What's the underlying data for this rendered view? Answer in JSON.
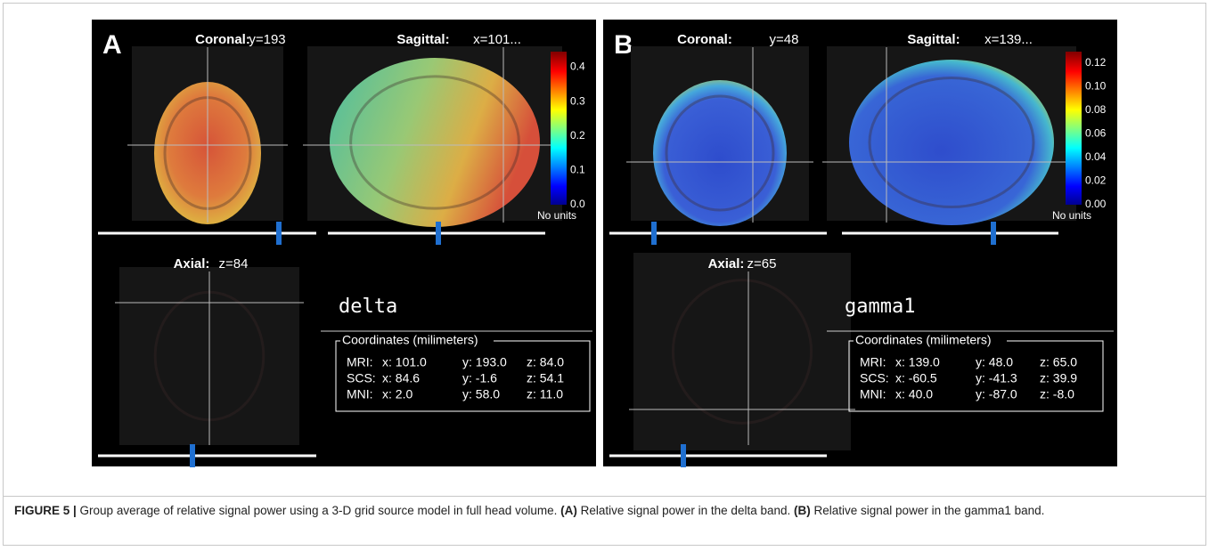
{
  "figure": {
    "panels": [
      {
        "letter": "A",
        "coronal": {
          "title": "Coronal:",
          "coord": "y=193"
        },
        "sagittal": {
          "title": "Sagittal:",
          "coord": "x=101..."
        },
        "axial": {
          "title": "Axial:",
          "coord": "z=84"
        },
        "colorbar": {
          "ticks": [
            "0.4",
            "0.3",
            "0.2",
            "0.1",
            "0.0"
          ],
          "units": "No units"
        },
        "band": "delta",
        "coordinates": {
          "title": "Coordinates (milimeters)",
          "rows": [
            [
              "MRI:",
              "x: 101.0",
              "y: 193.0",
              "z: 84.0"
            ],
            [
              "SCS:",
              "x: 84.6",
              "y: -1.6",
              "z: 54.1"
            ],
            [
              "MNI:",
              "x: 2.0",
              "y: 58.0",
              "z: 11.0"
            ]
          ]
        }
      },
      {
        "letter": "B",
        "coronal": {
          "title": "Coronal:",
          "coord": "y=48"
        },
        "sagittal": {
          "title": "Sagittal:",
          "coord": "x=139..."
        },
        "axial": {
          "title": "Axial:",
          "coord": "z=65"
        },
        "colorbar": {
          "ticks": [
            "0.12",
            "0.10",
            "0.08",
            "0.06",
            "0.04",
            "0.02",
            "0.00"
          ],
          "units": "No units"
        },
        "band": "gamma1",
        "coordinates": {
          "title": "Coordinates (milimeters)",
          "rows": [
            [
              "MRI:",
              "x: 139.0",
              "y: 48.0",
              "z: 65.0"
            ],
            [
              "SCS:",
              "x: -60.5",
              "y: -41.3",
              "z: 39.9"
            ],
            [
              "MNI:",
              "x: 40.0",
              "y: -87.0",
              "z: -8.0"
            ]
          ]
        }
      }
    ],
    "caption": {
      "label": "FIGURE 5 |",
      "text": " Group average of relative signal power using a 3-D grid source model in full head volume. ",
      "a_label": "(A)",
      "a_text": " Relative signal power in the delta band. ",
      "b_label": "(B)",
      "b_text": " Relative signal power in the gamma1 band."
    }
  }
}
